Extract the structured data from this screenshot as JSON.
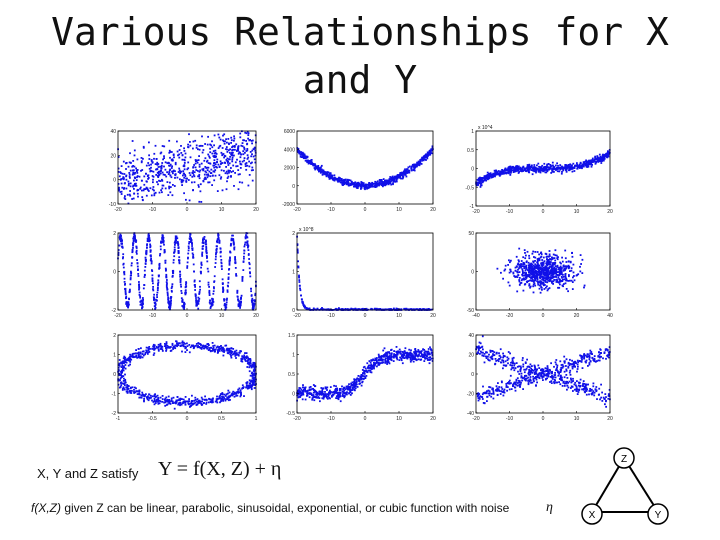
{
  "title": {
    "line1": "Various Relationships for X",
    "line2": "and Y"
  },
  "captions": {
    "satisfy": "X, Y and Z satisfy",
    "formula": "Y = f(X, Z) + η",
    "f_of": "f(X,Z)",
    "description": " given Z can be linear, parabolic, sinusoidal, exponential, or cubic function with noise",
    "eta": "η"
  },
  "graph": {
    "nodes": [
      "Z",
      "X",
      "Y"
    ],
    "edges": [
      [
        "Z",
        "X"
      ],
      [
        "Z",
        "Y"
      ],
      [
        "X",
        "Y"
      ]
    ]
  },
  "colors": {
    "points": "#1010e8",
    "axis": "#000000"
  },
  "chart_data": [
    {
      "type": "scatter",
      "relationship": "linear",
      "xlim": [
        -20,
        20
      ],
      "ylim": [
        -10,
        40
      ],
      "xticks": [
        "-20",
        "-10",
        "0",
        "10",
        "20"
      ],
      "yticks": [
        "40",
        "20",
        "0",
        "-10"
      ],
      "multiplier": ""
    },
    {
      "type": "scatter",
      "relationship": "parabolic",
      "xlim": [
        -20,
        20
      ],
      "ylim": [
        -2000,
        6000
      ],
      "xticks": [
        "-20",
        "-10",
        "0",
        "10",
        "20"
      ],
      "yticks": [
        "6000",
        "4000",
        "2000",
        "0",
        "-2000"
      ],
      "multiplier": ""
    },
    {
      "type": "scatter",
      "relationship": "cubic",
      "xlim": [
        -20,
        20
      ],
      "ylim": [
        -10000,
        10000
      ],
      "xticks": [
        "-20",
        "-10",
        "0",
        "10",
        "20"
      ],
      "yticks": [
        "1",
        "0.5",
        "0",
        "-0.5",
        "-1"
      ],
      "multiplier": "x 10^4"
    },
    {
      "type": "scatter",
      "relationship": "sinusoidal",
      "xlim": [
        -20,
        20
      ],
      "ylim": [
        -2,
        2
      ],
      "xticks": [
        "-20",
        "-10",
        "0",
        "10",
        "20"
      ],
      "yticks": [
        "2",
        "0",
        "-2"
      ],
      "multiplier": ""
    },
    {
      "type": "scatter",
      "relationship": "exponential",
      "xlim": [
        -20,
        20
      ],
      "ylim": [
        0,
        200000000
      ],
      "xticks": [
        "-20",
        "-10",
        "0",
        "10",
        "20"
      ],
      "yticks": [
        "2",
        "1",
        "0"
      ],
      "multiplier": "x 10^8"
    },
    {
      "type": "scatter",
      "relationship": "independent",
      "xlim": [
        -40,
        40
      ],
      "ylim": [
        -50,
        50
      ],
      "xticks": [
        "-40",
        "-20",
        "0",
        "20",
        "40"
      ],
      "yticks": [
        "50",
        "0",
        "-50"
      ],
      "multiplier": ""
    },
    {
      "type": "scatter",
      "relationship": "circle",
      "xlim": [
        -1,
        1
      ],
      "ylim": [
        -2,
        2
      ],
      "xticks": [
        "-1",
        "-0.5",
        "0",
        "0.5",
        "1"
      ],
      "yticks": [
        "2",
        "1",
        "0",
        "-1",
        "-2"
      ],
      "multiplier": ""
    },
    {
      "type": "scatter",
      "relationship": "sigmoid",
      "xlim": [
        -20,
        20
      ],
      "ylim": [
        -0.5,
        1.5
      ],
      "xticks": [
        "-20",
        "-10",
        "0",
        "10",
        "20"
      ],
      "yticks": [
        "1.5",
        "1",
        "0.5",
        "0",
        "-0.5"
      ],
      "multiplier": ""
    },
    {
      "type": "scatter",
      "relationship": "cross",
      "xlim": [
        -20,
        20
      ],
      "ylim": [
        -40,
        40
      ],
      "xticks": [
        "-20",
        "-10",
        "0",
        "10",
        "20"
      ],
      "yticks": [
        "40",
        "20",
        "0",
        "-20",
        "-40"
      ],
      "multiplier": ""
    }
  ]
}
